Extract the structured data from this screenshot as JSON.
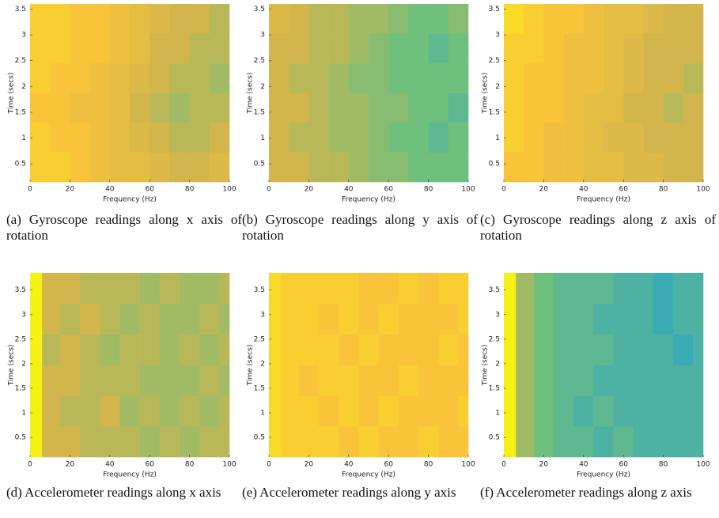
{
  "chart_data": [
    {
      "type": "heatmap",
      "caption": "(a) Gyroscope readings along x axis of rotation",
      "xlabel": "Frequency (Hz)",
      "ylabel": "Time (secs)",
      "xlim": [
        0,
        100
      ],
      "ylim": [
        0.15,
        3.6
      ],
      "xticks": [
        0,
        20,
        40,
        60,
        80,
        100
      ],
      "yticks": [
        0.5,
        1,
        1.5,
        2,
        2.5,
        3,
        3.5
      ],
      "x_edges": [
        0,
        10,
        20,
        30,
        40,
        50,
        60,
        70,
        80,
        90,
        100
      ],
      "y_edges": [
        0.15,
        0.725,
        1.3,
        1.875,
        2.45,
        3.025,
        3.6
      ],
      "zlim": [
        0,
        1
      ],
      "colormap": [
        "#1f6fd0",
        "#2aa5c9",
        "#6fbf7d",
        "#d2b64c",
        "#f9c33a",
        "#f7f014"
      ],
      "z": [
        [
          0.85,
          0.85,
          0.8,
          0.75,
          0.7,
          0.7,
          0.65,
          0.6,
          0.6,
          0.65
        ],
        [
          0.85,
          0.8,
          0.8,
          0.75,
          0.7,
          0.65,
          0.6,
          0.55,
          0.55,
          0.6
        ],
        [
          0.8,
          0.8,
          0.75,
          0.75,
          0.7,
          0.6,
          0.55,
          0.5,
          0.55,
          0.55
        ],
        [
          0.85,
          0.8,
          0.8,
          0.75,
          0.7,
          0.65,
          0.6,
          0.55,
          0.55,
          0.5
        ],
        [
          0.85,
          0.85,
          0.8,
          0.8,
          0.75,
          0.7,
          0.6,
          0.6,
          0.55,
          0.55
        ],
        [
          0.85,
          0.85,
          0.8,
          0.8,
          0.75,
          0.7,
          0.65,
          0.6,
          0.6,
          0.55
        ]
      ]
    },
    {
      "type": "heatmap",
      "caption": "(b) Gyroscope readings along y axis of rotation",
      "xlabel": "Frequency (Hz)",
      "ylabel": "Time (secs)",
      "xlim": [
        0,
        100
      ],
      "ylim": [
        0.15,
        3.6
      ],
      "xticks": [
        0,
        20,
        40,
        60,
        80,
        100
      ],
      "yticks": [
        0.5,
        1,
        1.5,
        2,
        2.5,
        3,
        3.5
      ],
      "x_edges": [
        0,
        10,
        20,
        30,
        40,
        50,
        60,
        70,
        80,
        90,
        100
      ],
      "y_edges": [
        0.15,
        0.725,
        1.3,
        1.875,
        2.45,
        3.025,
        3.6
      ],
      "zlim": [
        0,
        1
      ],
      "colormap": [
        "#1f6fd0",
        "#2aa5c9",
        "#6fbf7d",
        "#d2b64c",
        "#f9c33a",
        "#f7f014"
      ],
      "z": [
        [
          0.6,
          0.6,
          0.55,
          0.55,
          0.5,
          0.45,
          0.45,
          0.4,
          0.4,
          0.4
        ],
        [
          0.6,
          0.55,
          0.55,
          0.5,
          0.5,
          0.45,
          0.4,
          0.4,
          0.35,
          0.4
        ],
        [
          0.6,
          0.6,
          0.55,
          0.5,
          0.5,
          0.45,
          0.45,
          0.4,
          0.4,
          0.35
        ],
        [
          0.6,
          0.55,
          0.55,
          0.5,
          0.45,
          0.45,
          0.4,
          0.4,
          0.4,
          0.4
        ],
        [
          0.6,
          0.6,
          0.55,
          0.55,
          0.5,
          0.45,
          0.4,
          0.4,
          0.35,
          0.4
        ],
        [
          0.65,
          0.6,
          0.55,
          0.55,
          0.5,
          0.5,
          0.45,
          0.4,
          0.4,
          0.45
        ]
      ]
    },
    {
      "type": "heatmap",
      "caption": "(c) Gyroscope readings along z axis of rotation",
      "xlabel": "Frequency (Hz)",
      "ylabel": "Time (secs)",
      "xlim": [
        0,
        100
      ],
      "ylim": [
        0.15,
        3.6
      ],
      "xticks": [
        0,
        20,
        40,
        60,
        80,
        100
      ],
      "yticks": [
        0.5,
        1,
        1.5,
        2,
        2.5,
        3,
        3.5
      ],
      "x_edges": [
        0,
        10,
        20,
        30,
        40,
        50,
        60,
        70,
        80,
        90,
        100
      ],
      "y_edges": [
        0.15,
        0.725,
        1.3,
        1.875,
        2.45,
        3.025,
        3.6
      ],
      "zlim": [
        0,
        1
      ],
      "colormap": [
        "#1f6fd0",
        "#2aa5c9",
        "#6fbf7d",
        "#d2b64c",
        "#f9c33a",
        "#f7f014"
      ],
      "z": [
        [
          0.8,
          0.8,
          0.75,
          0.75,
          0.7,
          0.7,
          0.65,
          0.65,
          0.6,
          0.6
        ],
        [
          0.85,
          0.8,
          0.75,
          0.75,
          0.7,
          0.65,
          0.65,
          0.6,
          0.6,
          0.6
        ],
        [
          0.85,
          0.8,
          0.8,
          0.75,
          0.7,
          0.7,
          0.6,
          0.6,
          0.55,
          0.6
        ],
        [
          0.85,
          0.8,
          0.8,
          0.75,
          0.75,
          0.7,
          0.65,
          0.6,
          0.6,
          0.55
        ],
        [
          0.85,
          0.85,
          0.8,
          0.75,
          0.75,
          0.7,
          0.65,
          0.6,
          0.6,
          0.6
        ],
        [
          0.9,
          0.85,
          0.8,
          0.8,
          0.75,
          0.7,
          0.7,
          0.65,
          0.6,
          0.6
        ]
      ]
    },
    {
      "type": "heatmap",
      "caption": "(d) Accelerometer readings along x axis",
      "xlabel": "Frequency (Hz)",
      "ylabel": "Time (secs)",
      "xlim": [
        0,
        100
      ],
      "ylim": [
        0.1,
        3.85
      ],
      "xticks": [
        0,
        20,
        40,
        60,
        80,
        100
      ],
      "yticks": [
        0.5,
        1,
        1.5,
        2,
        2.5,
        3,
        3.5
      ],
      "x_edges": [
        0,
        6,
        15,
        25,
        35,
        45,
        55,
        65,
        75,
        85,
        95,
        100
      ],
      "y_edges": [
        0.1,
        0.725,
        1.35,
        1.975,
        2.6,
        3.225,
        3.85
      ],
      "zlim": [
        0,
        1
      ],
      "colormap": [
        "#1f6fd0",
        "#2aa5c9",
        "#6fbf7d",
        "#d2b64c",
        "#f9c33a",
        "#f7f014"
      ],
      "z": [
        [
          1,
          0.6,
          0.6,
          0.55,
          0.55,
          0.55,
          0.5,
          0.55,
          0.5,
          0.55,
          0.55
        ],
        [
          1,
          0.6,
          0.55,
          0.55,
          0.6,
          0.5,
          0.55,
          0.5,
          0.55,
          0.5,
          0.55
        ],
        [
          1,
          0.6,
          0.6,
          0.55,
          0.55,
          0.55,
          0.5,
          0.5,
          0.5,
          0.55,
          0.5
        ],
        [
          1,
          0.55,
          0.6,
          0.55,
          0.5,
          0.55,
          0.55,
          0.5,
          0.55,
          0.5,
          0.55
        ],
        [
          1,
          0.6,
          0.55,
          0.6,
          0.55,
          0.5,
          0.55,
          0.5,
          0.5,
          0.55,
          0.5
        ],
        [
          1,
          0.6,
          0.6,
          0.55,
          0.55,
          0.55,
          0.5,
          0.55,
          0.5,
          0.5,
          0.55
        ]
      ]
    },
    {
      "type": "heatmap",
      "caption": "(e) Accelerometer readings along y axis",
      "xlabel": "Frequency (Hz)",
      "ylabel": "Time (secs)",
      "xlim": [
        0,
        100
      ],
      "ylim": [
        0.1,
        3.85
      ],
      "xticks": [
        0,
        20,
        40,
        60,
        80,
        100
      ],
      "yticks": [
        0.5,
        1,
        1.5,
        2,
        2.5,
        3,
        3.5
      ],
      "x_edges": [
        0,
        6,
        15,
        25,
        35,
        45,
        55,
        65,
        75,
        85,
        95,
        100
      ],
      "y_edges": [
        0.1,
        0.725,
        1.35,
        1.975,
        2.6,
        3.225,
        3.85
      ],
      "zlim": [
        0,
        1
      ],
      "colormap": [
        "#1f6fd0",
        "#2aa5c9",
        "#6fbf7d",
        "#d2b64c",
        "#f9c33a",
        "#f7f014"
      ],
      "z": [
        [
          0.9,
          0.85,
          0.85,
          0.85,
          0.8,
          0.85,
          0.8,
          0.8,
          0.85,
          0.8,
          0.8
        ],
        [
          0.9,
          0.85,
          0.85,
          0.8,
          0.85,
          0.8,
          0.85,
          0.8,
          0.8,
          0.8,
          0.85
        ],
        [
          0.9,
          0.85,
          0.8,
          0.85,
          0.85,
          0.8,
          0.8,
          0.85,
          0.8,
          0.8,
          0.8
        ],
        [
          0.9,
          0.85,
          0.85,
          0.85,
          0.8,
          0.85,
          0.8,
          0.8,
          0.8,
          0.85,
          0.8
        ],
        [
          0.9,
          0.85,
          0.85,
          0.8,
          0.85,
          0.8,
          0.85,
          0.8,
          0.8,
          0.8,
          0.85
        ],
        [
          0.9,
          0.85,
          0.85,
          0.85,
          0.85,
          0.8,
          0.8,
          0.85,
          0.8,
          0.85,
          0.85
        ]
      ]
    },
    {
      "type": "heatmap",
      "caption": "(f) Accelerometer readings along z axis",
      "xlabel": "Frequency (Hz)",
      "ylabel": "Time (secs)",
      "xlim": [
        0,
        100
      ],
      "ylim": [
        0.1,
        3.85
      ],
      "xticks": [
        0,
        20,
        40,
        60,
        80,
        100
      ],
      "yticks": [
        0.5,
        1,
        1.5,
        2,
        2.5,
        3,
        3.5
      ],
      "x_edges": [
        0,
        6,
        15,
        25,
        35,
        45,
        55,
        65,
        75,
        85,
        95,
        100
      ],
      "y_edges": [
        0.1,
        0.725,
        1.35,
        1.975,
        2.6,
        3.225,
        3.85
      ],
      "zlim": [
        0,
        1
      ],
      "colormap": [
        "#1f6fd0",
        "#2aa5c9",
        "#6fbf7d",
        "#d2b64c",
        "#f9c33a",
        "#f7f014"
      ],
      "z": [
        [
          1,
          0.5,
          0.4,
          0.35,
          0.35,
          0.3,
          0.35,
          0.3,
          0.3,
          0.3,
          0.3
        ],
        [
          1,
          0.5,
          0.4,
          0.35,
          0.3,
          0.35,
          0.3,
          0.3,
          0.3,
          0.3,
          0.3
        ],
        [
          1,
          0.5,
          0.4,
          0.35,
          0.35,
          0.3,
          0.3,
          0.3,
          0.3,
          0.3,
          0.3
        ],
        [
          1,
          0.5,
          0.4,
          0.35,
          0.35,
          0.35,
          0.3,
          0.3,
          0.3,
          0.25,
          0.3
        ],
        [
          1,
          0.5,
          0.4,
          0.35,
          0.35,
          0.3,
          0.3,
          0.3,
          0.25,
          0.3,
          0.3
        ],
        [
          1,
          0.5,
          0.4,
          0.35,
          0.35,
          0.35,
          0.3,
          0.3,
          0.25,
          0.3,
          0.3
        ]
      ]
    }
  ]
}
